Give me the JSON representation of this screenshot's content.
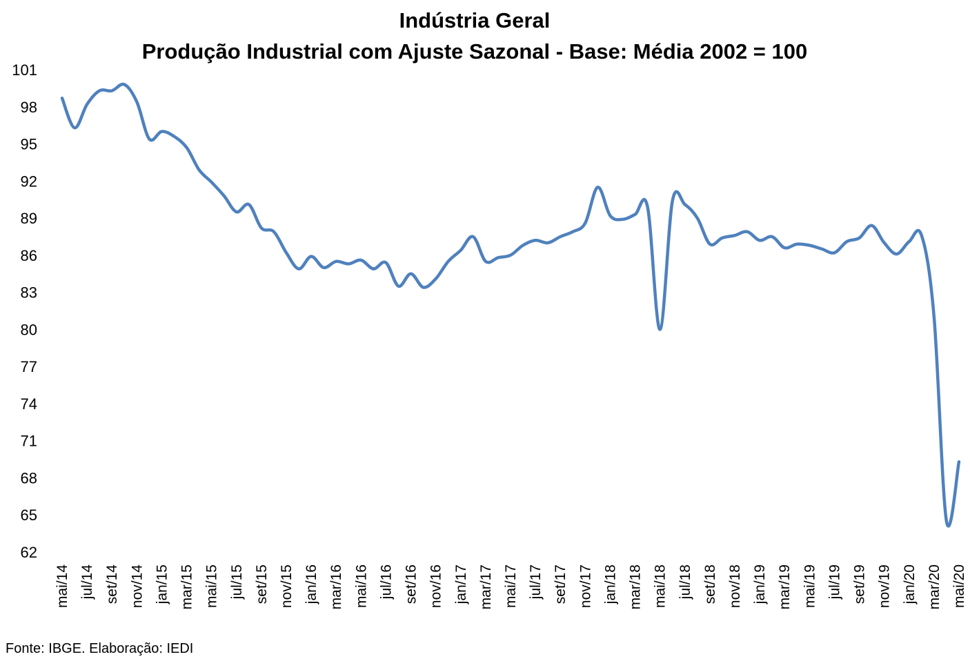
{
  "chart_data": {
    "type": "line",
    "title": "Indústria Geral",
    "subtitle": "Produção Industrial com Ajuste Sazonal - Base: Média 2002 = 100",
    "xlabel": "",
    "ylabel": "",
    "ylim": [
      62,
      101
    ],
    "yticks": [
      101,
      98,
      95,
      92,
      89,
      86,
      83,
      80,
      77,
      74,
      71,
      68,
      65,
      62
    ],
    "grid": false,
    "legend": "none",
    "line_color": "#4F81BD",
    "x_tick_labels": [
      "mai/14",
      "jul/14",
      "set/14",
      "nov/14",
      "jan/15",
      "mar/15",
      "mai/15",
      "jul/15",
      "set/15",
      "nov/15",
      "jan/16",
      "mar/16",
      "mai/16",
      "jul/16",
      "set/16",
      "nov/16",
      "jan/17",
      "mar/17",
      "mai/17",
      "jul/17",
      "set/17",
      "nov/17",
      "jan/18",
      "mar/18",
      "mai/18",
      "jul/18",
      "set/18",
      "nov/18",
      "jan/19",
      "mar/19",
      "mai/19",
      "jul/19",
      "set/19",
      "nov/19",
      "jan/20",
      "mar/20",
      "mai/20"
    ],
    "x": [
      "mai/14",
      "jun/14",
      "jul/14",
      "ago/14",
      "set/14",
      "out/14",
      "nov/14",
      "dez/14",
      "jan/15",
      "fev/15",
      "mar/15",
      "abr/15",
      "mai/15",
      "jun/15",
      "jul/15",
      "ago/15",
      "set/15",
      "out/15",
      "nov/15",
      "dez/15",
      "jan/16",
      "fev/16",
      "mar/16",
      "abr/16",
      "mai/16",
      "jun/16",
      "jul/16",
      "ago/16",
      "set/16",
      "out/16",
      "nov/16",
      "dez/16",
      "jan/17",
      "fev/17",
      "mar/17",
      "abr/17",
      "mai/17",
      "jun/17",
      "jul/17",
      "ago/17",
      "set/17",
      "out/17",
      "nov/17",
      "dez/17",
      "jan/18",
      "fev/18",
      "mar/18",
      "abr/18",
      "mai/18",
      "jun/18",
      "jul/18",
      "ago/18",
      "set/18",
      "out/18",
      "nov/18",
      "dez/18",
      "jan/19",
      "fev/19",
      "mar/19",
      "abr/19",
      "mai/19",
      "jun/19",
      "jul/19",
      "ago/19",
      "set/19",
      "out/19",
      "nov/19",
      "dez/19",
      "jan/20",
      "fev/20",
      "mar/20",
      "abr/20",
      "mai/20"
    ],
    "series": [
      {
        "values": [
          98.7,
          96.3,
          98.2,
          99.3,
          99.3,
          99.8,
          98.4,
          95.4,
          96.0,
          95.6,
          94.7,
          92.9,
          91.9,
          90.8,
          89.5,
          90.1,
          88.2,
          87.9,
          86.2,
          84.9,
          85.9,
          85.0,
          85.5,
          85.3,
          85.6,
          84.9,
          85.4,
          83.5,
          84.5,
          83.4,
          84.1,
          85.5,
          86.4,
          87.5,
          85.5,
          85.8,
          86.0,
          86.8,
          87.2,
          87.0,
          87.5,
          87.9,
          88.6,
          91.5,
          89.2,
          88.9,
          89.3,
          89.9,
          80.0,
          90.4,
          90.1,
          89.0,
          86.9,
          87.4,
          87.6,
          87.9,
          87.2,
          87.5,
          86.6,
          86.9,
          86.8,
          86.5,
          86.2,
          87.1,
          87.4,
          88.4,
          87.0,
          86.1,
          87.1,
          87.6,
          81.0,
          64.5,
          69.3
        ]
      }
    ]
  },
  "source": "Fonte: IBGE. Elaboração: IEDI"
}
